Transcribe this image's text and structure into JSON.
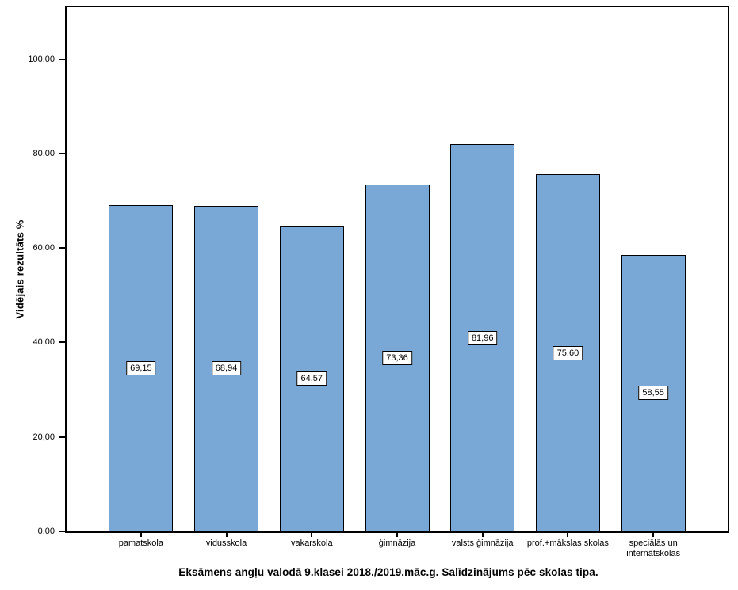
{
  "chart_data": {
    "type": "bar",
    "title": "Eksāmens angļu valodā 9.klasei 2018./2019.māc.g. Salīdzinājums pēc skolas tipa.",
    "xlabel": "",
    "ylabel": "Vidējais rezultāts %",
    "categories": [
      "pamatskola",
      "vidusskola",
      "vakarskola",
      "ģimnāzija",
      "valsts ģimnāzija",
      "prof.+mākslas skolas",
      "speciālās un internātskolas"
    ],
    "values": [
      69.15,
      68.94,
      64.57,
      73.36,
      81.96,
      75.6,
      58.55
    ],
    "value_labels": [
      "69,15",
      "68,94",
      "64,57",
      "73,36",
      "81,96",
      "75,60",
      "58,55"
    ],
    "ylim": [
      0,
      111
    ],
    "yticks": [
      0,
      20,
      40,
      60,
      80,
      100
    ],
    "ytick_labels": [
      "0,00",
      "20,00",
      "40,00",
      "60,00",
      "80,00",
      "100,00"
    ],
    "grid": false,
    "legend": "none",
    "bar_color": "#7AA8D6",
    "bar_border_color": "#000000",
    "label_box_bg": "#ffffff",
    "axis_color": "#000000"
  }
}
